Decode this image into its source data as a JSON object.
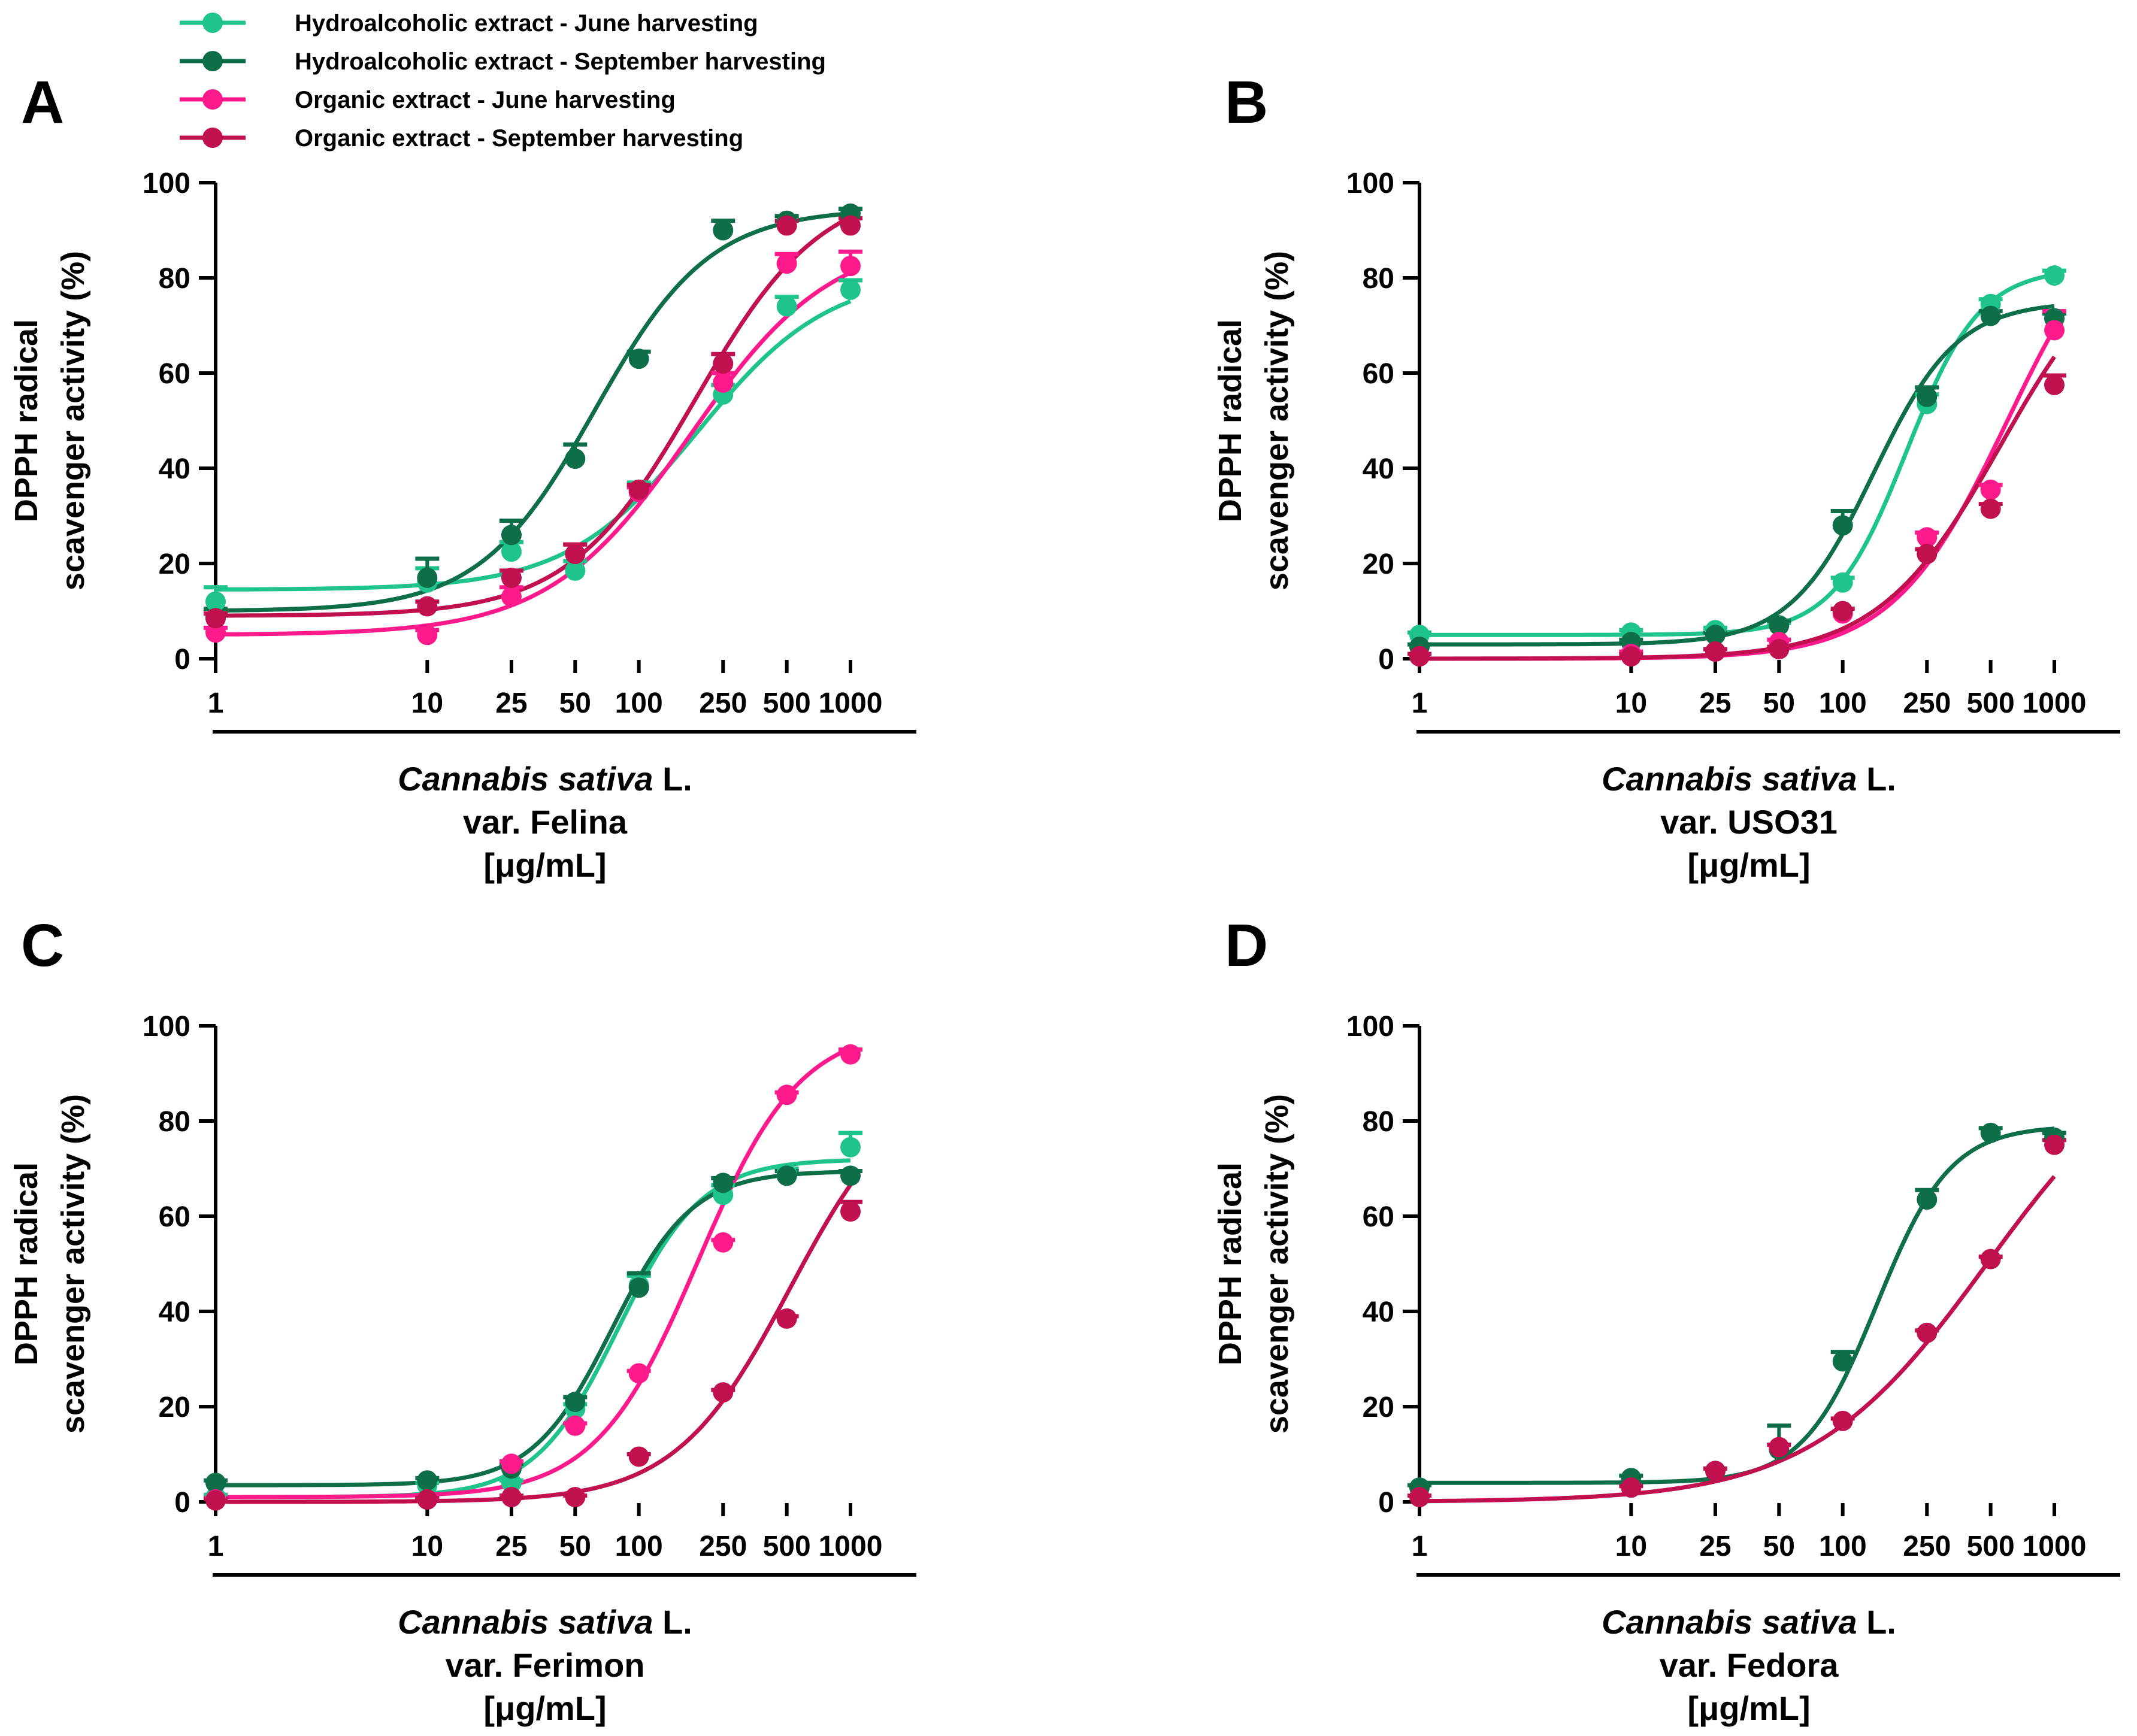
{
  "colors": {
    "hydro_june": "#1fc48a",
    "hydro_sept": "#0e6e48",
    "org_june": "#ff1a8c",
    "org_sept": "#c0104f",
    "axis": "#000000"
  },
  "legend": [
    {
      "key": "hydro_june",
      "label": "Hydroalcoholic extract - June harvesting"
    },
    {
      "key": "hydro_sept",
      "label": "Hydroalcoholic extract - September harvesting"
    },
    {
      "key": "org_june",
      "label": "Organic extract - June harvesting"
    },
    {
      "key": "org_sept",
      "label": "Organic extract - September harvesting"
    }
  ],
  "chart_data": [
    {
      "type": "scatter",
      "panel": "A",
      "title": "",
      "ylabel_lines": [
        "DPPH radical",
        "scavenger activity (%)"
      ],
      "xlabel_species": "Cannabis sativa",
      "xlabel_author": " L.",
      "xlabel_variety": "var. Felina",
      "xlabel_unit": "[μg/mL]",
      "xscale": "log",
      "xticks": [
        1,
        10,
        25,
        50,
        100,
        250,
        500,
        1000
      ],
      "xtick_labels": [
        "1",
        "10",
        "25",
        "50",
        "100",
        "250",
        "500",
        "1000"
      ],
      "yticks": [
        0,
        20,
        40,
        60,
        80,
        100
      ],
      "ytick_labels": [
        "0",
        "20",
        "40",
        "60",
        "80",
        "100"
      ],
      "ylim": [
        0,
        100
      ],
      "x": [
        1,
        10,
        25,
        50,
        100,
        250,
        500,
        1000
      ],
      "series": [
        {
          "name": "Hydroalcoholic extract - June harvesting",
          "key": "hydro_june",
          "values": [
            12,
            16,
            22.5,
            18.5,
            35,
            55.5,
            74,
            77.5
          ],
          "errors": [
            3,
            3,
            2,
            2,
            2,
            2,
            2,
            2
          ],
          "fit": {
            "bottom": 14.5,
            "top": 81,
            "ec50": 190,
            "hill": 1.4
          }
        },
        {
          "name": "Hydroalcoholic extract - September harvesting",
          "key": "hydro_sept",
          "values": [
            8.5,
            17,
            26,
            42,
            63,
            90,
            92,
            93.5
          ],
          "errors": [
            2,
            4,
            3,
            3,
            1.5,
            2,
            1,
            1
          ],
          "fit": {
            "bottom": 10,
            "top": 94.5,
            "ec50": 62,
            "hill": 1.6
          }
        },
        {
          "name": "Organic extract - June harvesting",
          "key": "org_june",
          "values": [
            5.5,
            5,
            13,
            22,
            35,
            58,
            83,
            82.5
          ],
          "errors": [
            1,
            1,
            2,
            2,
            1,
            2,
            2,
            3
          ],
          "fit": {
            "bottom": 5,
            "top": 89,
            "ec50": 175,
            "hill": 1.3
          }
        },
        {
          "name": "Organic extract - September harvesting",
          "key": "org_sept",
          "values": [
            8.5,
            11,
            17,
            22,
            35.5,
            62,
            91,
            91
          ],
          "errors": [
            1,
            1,
            1.5,
            2,
            1,
            2,
            1,
            1.5
          ],
          "fit": {
            "bottom": 9,
            "top": 100,
            "ec50": 185,
            "hill": 1.45
          }
        }
      ]
    },
    {
      "type": "scatter",
      "panel": "B",
      "title": "",
      "ylabel_lines": [
        "DPPH radical",
        "scavenger activity (%)"
      ],
      "xlabel_species": "Cannabis sativa",
      "xlabel_author": " L.",
      "xlabel_variety": "var. USO31",
      "xlabel_unit": "[μg/mL]",
      "xscale": "log",
      "xticks": [
        1,
        10,
        25,
        50,
        100,
        250,
        500,
        1000
      ],
      "xtick_labels": [
        "1",
        "10",
        "25",
        "50",
        "100",
        "250",
        "500",
        "1000"
      ],
      "yticks": [
        0,
        20,
        40,
        60,
        80,
        100
      ],
      "ytick_labels": [
        "0",
        "20",
        "40",
        "60",
        "80",
        "100"
      ],
      "ylim": [
        0,
        100
      ],
      "x": [
        1,
        10,
        25,
        50,
        100,
        250,
        500,
        1000
      ],
      "series": [
        {
          "name": "Hydroalcoholic extract - June harvesting",
          "key": "hydro_june",
          "values": [
            5,
            5.5,
            6,
            7,
            16,
            53.5,
            74.5,
            80.5
          ],
          "errors": [
            0.5,
            0.5,
            0.5,
            0.5,
            1,
            2,
            1,
            1
          ],
          "fit": {
            "bottom": 5,
            "top": 82,
            "ec50": 200,
            "hill": 2.5
          }
        },
        {
          "name": "Hydroalcoholic extract - September harvesting",
          "key": "hydro_sept",
          "values": [
            2.5,
            3.5,
            5,
            7,
            28,
            55,
            72,
            71.5
          ],
          "errors": [
            0.5,
            0.5,
            0.5,
            1,
            3,
            2,
            1,
            1
          ],
          "fit": {
            "bottom": 3,
            "top": 75,
            "ec50": 140,
            "hill": 2.2
          }
        },
        {
          "name": "Organic extract - June harvesting",
          "key": "org_june",
          "values": [
            0.5,
            1,
            1.5,
            3.5,
            9.5,
            25.5,
            35.5,
            69
          ],
          "errors": [
            0.5,
            0.5,
            0.5,
            0.5,
            1,
            1,
            1,
            4
          ],
          "fit": {
            "bottom": 0,
            "top": 100,
            "ec50": 600,
            "hill": 1.6
          }
        },
        {
          "name": "Organic extract - September harvesting",
          "key": "org_sept",
          "values": [
            0.5,
            0.5,
            1.5,
            2,
            10,
            22,
            31.5,
            57.5
          ],
          "errors": [
            0.5,
            0.5,
            0.5,
            0.5,
            0.5,
            1,
            1,
            2
          ],
          "fit": {
            "bottom": 0,
            "top": 90,
            "ec50": 560,
            "hill": 1.5
          }
        }
      ]
    },
    {
      "type": "scatter",
      "panel": "C",
      "title": "",
      "ylabel_lines": [
        "DPPH radical",
        "scavenger activity (%)"
      ],
      "xlabel_species": "Cannabis sativa",
      "xlabel_author": " L.",
      "xlabel_variety": "var. Ferimon",
      "xlabel_unit": "[μg/mL]",
      "xscale": "log",
      "xticks": [
        1,
        10,
        25,
        50,
        100,
        250,
        500,
        1000
      ],
      "xtick_labels": [
        "1",
        "10",
        "25",
        "50",
        "100",
        "250",
        "500",
        "1000"
      ],
      "yticks": [
        0,
        20,
        40,
        60,
        80,
        100
      ],
      "ytick_labels": [
        "0",
        "20",
        "40",
        "60",
        "80",
        "100"
      ],
      "ylim": [
        0,
        100
      ],
      "x": [
        1,
        10,
        25,
        50,
        100,
        250,
        500,
        1000
      ],
      "series": [
        {
          "name": "Hydroalcoholic extract - June harvesting",
          "key": "hydro_june",
          "values": [
            1,
            3.5,
            4,
            19.5,
            45.5,
            64.5,
            69,
            74.5
          ],
          "errors": [
            0.5,
            0.5,
            0.5,
            1,
            2,
            2,
            1,
            3
          ],
          "fit": {
            "bottom": 1,
            "top": 72,
            "ec50": 80,
            "hill": 2.2
          }
        },
        {
          "name": "Hydroalcoholic extract - September harvesting",
          "key": "hydro_sept",
          "values": [
            4,
            4.5,
            7,
            21,
            45,
            67,
            68.5,
            68.5
          ],
          "errors": [
            0.5,
            0.5,
            1,
            1,
            3,
            1,
            1,
            1
          ],
          "fit": {
            "bottom": 3.5,
            "top": 69.5,
            "ec50": 75,
            "hill": 2.3
          }
        },
        {
          "name": "Organic extract - June harvesting",
          "key": "org_june",
          "values": [
            0.5,
            0.5,
            8,
            16,
            27,
            54.5,
            85.5,
            94
          ],
          "errors": [
            0.3,
            0.3,
            0.5,
            0.5,
            0.5,
            0.5,
            0.5,
            1
          ],
          "fit": {
            "bottom": 1,
            "top": 100,
            "ec50": 190,
            "hill": 1.8
          }
        },
        {
          "name": "Organic extract - September harvesting",
          "key": "org_sept",
          "values": [
            0.3,
            0.5,
            1,
            1,
            9.5,
            23,
            38.5,
            61
          ],
          "errors": [
            0.3,
            0.3,
            0.3,
            0.3,
            0.5,
            0.5,
            0.5,
            2
          ],
          "fit": {
            "bottom": 0,
            "top": 90,
            "ec50": 520,
            "hill": 1.6
          }
        }
      ]
    },
    {
      "type": "scatter",
      "panel": "D",
      "title": "",
      "ylabel_lines": [
        "DPPH radical",
        "scavenger activity (%)"
      ],
      "xlabel_species": "Cannabis sativa",
      "xlabel_author": " L.",
      "xlabel_variety": "var. Fedora",
      "xlabel_unit": "[μg/mL]",
      "xscale": "log",
      "xticks": [
        1,
        10,
        25,
        50,
        100,
        250,
        500,
        1000
      ],
      "xtick_labels": [
        "1",
        "10",
        "25",
        "50",
        "100",
        "250",
        "500",
        "1000"
      ],
      "yticks": [
        0,
        20,
        40,
        60,
        80,
        100
      ],
      "ytick_labels": [
        "0",
        "20",
        "40",
        "60",
        "80",
        "100"
      ],
      "ylim": [
        0,
        100
      ],
      "x": [
        1,
        10,
        25,
        50,
        100,
        250,
        500,
        1000
      ],
      "series": [
        {
          "name": "Hydroalcoholic extract - September harvesting",
          "key": "hydro_sept",
          "values": [
            3,
            5,
            6.5,
            11,
            29.5,
            63.5,
            77.5,
            76.5
          ],
          "errors": [
            0.5,
            0.5,
            0.5,
            5,
            2,
            2,
            1,
            1
          ],
          "fit": {
            "bottom": 4,
            "top": 79,
            "ec50": 145,
            "hill": 2.5
          }
        },
        {
          "name": "Organic extract - September harvesting",
          "key": "org_sept",
          "values": [
            1,
            3,
            6.5,
            11.5,
            17,
            35.5,
            51,
            75
          ],
          "errors": [
            0.3,
            0.3,
            0.5,
            0.5,
            0.5,
            0.5,
            0.5,
            1
          ],
          "fit": {
            "bottom": 0,
            "top": 100,
            "ec50": 480,
            "hill": 1.05
          }
        }
      ]
    }
  ]
}
